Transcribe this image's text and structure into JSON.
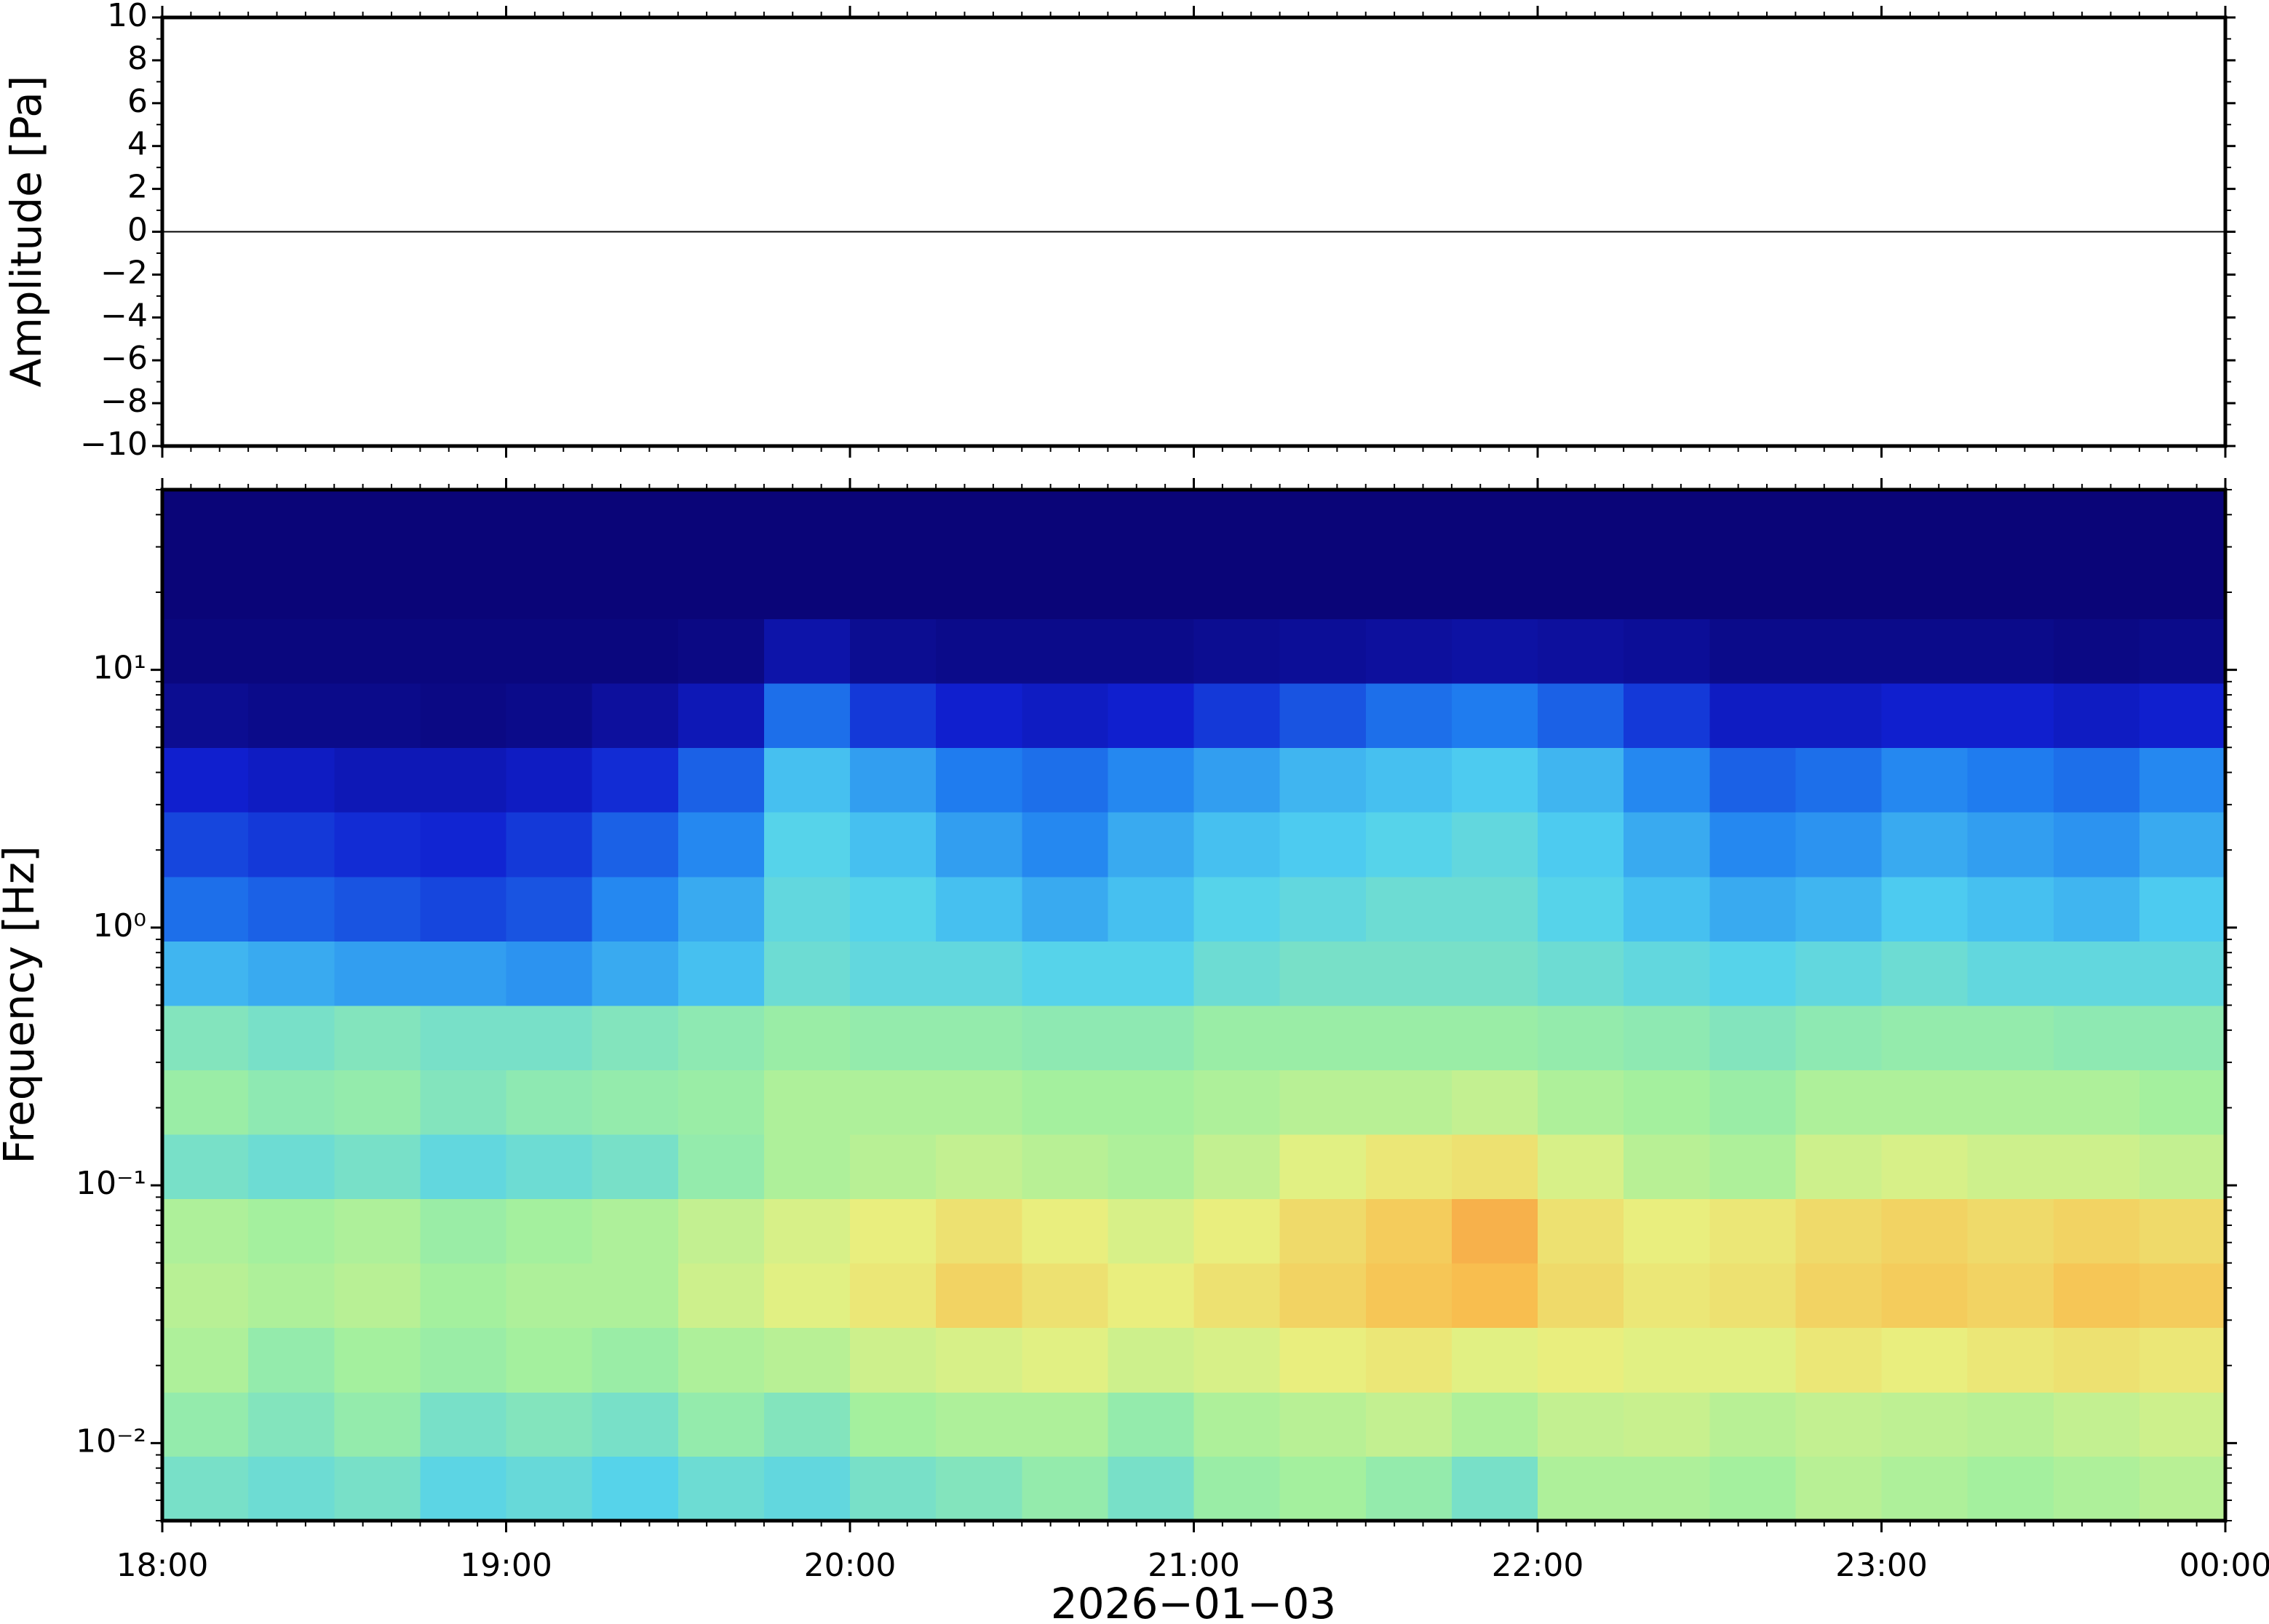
{
  "chart_data": [
    {
      "type": "line",
      "ylabel": "Amplitude [Pa]",
      "color": "#000000",
      "values": [
        0,
        0,
        0,
        0,
        0,
        0,
        0,
        0,
        0,
        0,
        0,
        0,
        0,
        0,
        0,
        0,
        0,
        0,
        0,
        0,
        0,
        0,
        0,
        0,
        0
      ],
      "ylim": [
        -10,
        10
      ],
      "yticks": [
        {
          "value": -10,
          "label": "−10"
        },
        {
          "value": -8,
          "label": "−8"
        },
        {
          "value": -6,
          "label": "−6"
        },
        {
          "value": -4,
          "label": "−4"
        },
        {
          "value": -2,
          "label": "−2"
        },
        0,
        2,
        4,
        6,
        8,
        10
      ]
    },
    {
      "type": "heatmap",
      "ylabel": "Frequency [Hz]",
      "xlabel": "2026−01−03",
      "log_y": true,
      "xticks": [
        "18:00",
        "19:00",
        "20:00",
        "21:00",
        "22:00",
        "23:00",
        "00:00"
      ],
      "ylim": [
        0.005,
        50
      ],
      "yticks": [
        {
          "value": 0.01,
          "label": "10⁻²"
        },
        {
          "value": 0.1,
          "label": "10⁻¹"
        },
        {
          "value": 1,
          "label": "10⁰"
        },
        {
          "value": 10,
          "label": "10¹"
        }
      ],
      "y_bins": [
        0.005,
        0.0089,
        0.0158,
        0.0281,
        0.05,
        0.0889,
        0.158,
        0.281,
        0.5,
        0.889,
        1.58,
        2.81,
        5,
        8.89,
        15.8,
        28.1,
        50
      ],
      "zlim": [
        0,
        1
      ],
      "colormap": [
        "#0a0578",
        "#1020d0",
        "#2080f0",
        "#50d0f0",
        "#a0f0a0",
        "#e8f080",
        "#f8c050",
        "#f06030"
      ],
      "values": [
        [
          0.5,
          0.48,
          0.5,
          0.45,
          0.47,
          0.44,
          0.48,
          0.46,
          0.5,
          0.52,
          0.55,
          0.5,
          0.56,
          0.58,
          0.55,
          0.5,
          0.6,
          0.6,
          0.58,
          0.62,
          0.6,
          0.58,
          0.6,
          0.62
        ],
        [
          0.55,
          0.52,
          0.55,
          0.5,
          0.52,
          0.5,
          0.55,
          0.52,
          0.58,
          0.6,
          0.6,
          0.55,
          0.6,
          0.62,
          0.64,
          0.6,
          0.64,
          0.65,
          0.62,
          0.64,
          0.63,
          0.62,
          0.64,
          0.66
        ],
        [
          0.6,
          0.55,
          0.58,
          0.56,
          0.58,
          0.56,
          0.6,
          0.62,
          0.66,
          0.68,
          0.7,
          0.66,
          0.68,
          0.72,
          0.74,
          0.7,
          0.72,
          0.7,
          0.7,
          0.74,
          0.72,
          0.74,
          0.76,
          0.74
        ],
        [
          0.62,
          0.6,
          0.62,
          0.58,
          0.6,
          0.6,
          0.66,
          0.7,
          0.74,
          0.8,
          0.76,
          0.72,
          0.76,
          0.8,
          0.84,
          0.86,
          0.78,
          0.74,
          0.76,
          0.8,
          0.82,
          0.8,
          0.84,
          0.82
        ],
        [
          0.6,
          0.58,
          0.6,
          0.56,
          0.58,
          0.6,
          0.64,
          0.68,
          0.72,
          0.76,
          0.72,
          0.68,
          0.72,
          0.78,
          0.82,
          0.88,
          0.76,
          0.72,
          0.74,
          0.78,
          0.8,
          0.78,
          0.8,
          0.78
        ],
        [
          0.5,
          0.48,
          0.5,
          0.46,
          0.48,
          0.5,
          0.55,
          0.6,
          0.62,
          0.64,
          0.62,
          0.6,
          0.64,
          0.7,
          0.74,
          0.76,
          0.68,
          0.62,
          0.6,
          0.66,
          0.68,
          0.66,
          0.66,
          0.64
        ],
        [
          0.56,
          0.54,
          0.55,
          0.52,
          0.54,
          0.55,
          0.56,
          0.6,
          0.6,
          0.6,
          0.58,
          0.58,
          0.6,
          0.62,
          0.62,
          0.64,
          0.6,
          0.58,
          0.56,
          0.6,
          0.6,
          0.6,
          0.6,
          0.58
        ],
        [
          0.52,
          0.5,
          0.52,
          0.5,
          0.5,
          0.52,
          0.54,
          0.56,
          0.55,
          0.55,
          0.54,
          0.54,
          0.56,
          0.56,
          0.56,
          0.56,
          0.55,
          0.54,
          0.52,
          0.54,
          0.55,
          0.55,
          0.54,
          0.54
        ],
        [
          0.38,
          0.36,
          0.34,
          0.34,
          0.32,
          0.36,
          0.4,
          0.48,
          0.46,
          0.46,
          0.44,
          0.44,
          0.48,
          0.5,
          0.5,
          0.5,
          0.48,
          0.46,
          0.44,
          0.46,
          0.48,
          0.46,
          0.46,
          0.46
        ],
        [
          0.26,
          0.24,
          0.22,
          0.2,
          0.22,
          0.3,
          0.36,
          0.46,
          0.44,
          0.4,
          0.36,
          0.4,
          0.44,
          0.46,
          0.48,
          0.48,
          0.44,
          0.4,
          0.36,
          0.38,
          0.42,
          0.4,
          0.38,
          0.42
        ],
        [
          0.2,
          0.18,
          0.16,
          0.15,
          0.18,
          0.24,
          0.3,
          0.44,
          0.4,
          0.34,
          0.3,
          0.36,
          0.4,
          0.42,
          0.44,
          0.46,
          0.42,
          0.36,
          0.3,
          0.32,
          0.36,
          0.34,
          0.32,
          0.36
        ],
        [
          0.14,
          0.12,
          0.1,
          0.1,
          0.12,
          0.16,
          0.24,
          0.4,
          0.34,
          0.28,
          0.26,
          0.3,
          0.34,
          0.38,
          0.4,
          0.42,
          0.38,
          0.3,
          0.24,
          0.26,
          0.3,
          0.28,
          0.26,
          0.3
        ],
        [
          0.04,
          0.03,
          0.03,
          0.02,
          0.03,
          0.06,
          0.1,
          0.26,
          0.18,
          0.14,
          0.12,
          0.14,
          0.18,
          0.22,
          0.26,
          0.28,
          0.24,
          0.18,
          0.12,
          0.12,
          0.14,
          0.14,
          0.12,
          0.14
        ],
        [
          0.01,
          0.01,
          0.01,
          0.01,
          0.01,
          0.01,
          0.02,
          0.08,
          0.04,
          0.03,
          0.03,
          0.03,
          0.04,
          0.05,
          0.06,
          0.07,
          0.06,
          0.05,
          0.03,
          0.03,
          0.03,
          0.03,
          0.02,
          0.03
        ],
        [
          0,
          0,
          0,
          0,
          0,
          0,
          0,
          0,
          0,
          0,
          0,
          0,
          0,
          0,
          0,
          0,
          0,
          0,
          0,
          0,
          0,
          0,
          0,
          0
        ],
        [
          0,
          0,
          0,
          0,
          0,
          0,
          0,
          0,
          0,
          0,
          0,
          0,
          0,
          0,
          0,
          0,
          0,
          0,
          0,
          0,
          0,
          0,
          0,
          0
        ]
      ]
    }
  ]
}
